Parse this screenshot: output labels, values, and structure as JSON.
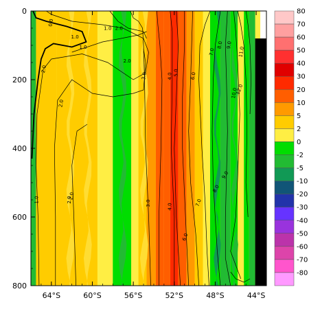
{
  "chart_data": {
    "type": "heatmap",
    "x_ticks": [
      "64°S",
      "60°S",
      "56°S",
      "52°S",
      "48°S",
      "44°S"
    ],
    "x_tick_values": [
      -64,
      -60,
      -56,
      -52,
      -48,
      -44
    ],
    "x_range": [
      -66,
      -43
    ],
    "y_ticks": [
      "0",
      "200",
      "400",
      "600",
      "800"
    ],
    "y_tick_values": [
      0,
      200,
      400,
      600,
      800
    ],
    "y_range": [
      0,
      800
    ],
    "y_inverted": true,
    "colorbar": {
      "levels": [
        "80",
        "70",
        "60",
        "50",
        "40",
        "30",
        "20",
        "10",
        "5",
        "2",
        "0",
        "-2",
        "-5",
        "-10",
        "-20",
        "-30",
        "-40",
        "-50",
        "-60",
        "-70",
        "-80"
      ],
      "colors": [
        "#ffc8c8",
        "#ffa0a0",
        "#ff7070",
        "#ff3030",
        "#e00000",
        "#ff2a00",
        "#ff5e00",
        "#ff9a00",
        "#ffcc00",
        "#ffee44",
        "#00dd00",
        "#22bb33",
        "#119955",
        "#115577",
        "#2233aa",
        "#6633ff",
        "#9933dd",
        "#bb33aa",
        "#dd44aa",
        "#ff55cc",
        "#ff99ff"
      ]
    },
    "bands": [
      {
        "x0": -66,
        "x1": -65.5,
        "value": -2
      },
      {
        "x0": -65.5,
        "x1": -63.5,
        "value": 3
      },
      {
        "x0": -63.5,
        "x1": -59.5,
        "value": 4
      },
      {
        "x0": -59.5,
        "x1": -58,
        "value": 2
      },
      {
        "x0": -58,
        "x1": -56.2,
        "value": -1
      },
      {
        "x0": -56.2,
        "x1": -55.5,
        "value": 1
      },
      {
        "x0": -55.5,
        "x1": -54.7,
        "value": 3
      },
      {
        "x0": -54.7,
        "x1": -53.8,
        "value": 7
      },
      {
        "x0": -53.8,
        "x1": -53,
        "value": 12
      },
      {
        "x0": -53,
        "x1": -52.4,
        "value": 17
      },
      {
        "x0": -52.4,
        "x1": -51.6,
        "value": 25
      },
      {
        "x0": -51.6,
        "x1": -50.8,
        "value": 15
      },
      {
        "x0": -50.8,
        "x1": -50,
        "value": 8
      },
      {
        "x0": -50,
        "x1": -49.2,
        "value": 4
      },
      {
        "x0": -49.2,
        "x1": -48.5,
        "value": 1
      },
      {
        "x0": -48.5,
        "x1": -47.5,
        "value": -1
      },
      {
        "x0": -47.5,
        "x1": -46.5,
        "value": -3
      },
      {
        "x0": -46.5,
        "x1": -45.8,
        "value": -1
      },
      {
        "x0": -45.8,
        "x1": -45.2,
        "value": 1
      },
      {
        "x0": -45.2,
        "x1": -44.7,
        "value": -1
      },
      {
        "x0": -44.7,
        "x1": -44.1,
        "value": -4
      }
    ],
    "contour_labels": [
      "0.0",
      "1.0",
      "1.0",
      "1.0",
      "2.0",
      "2.0",
      "2.0",
      "2.0",
      "2.0",
      "3.0",
      "4.0",
      "5.0",
      "6.0",
      "7.0",
      "8.0",
      "9.0",
      "10.0",
      "11.0",
      "12.0",
      "3.0",
      "4.0",
      "6.0",
      "7.0",
      "8.0",
      "9.0",
      "1.0",
      "2.0"
    ],
    "land_mask": true
  }
}
